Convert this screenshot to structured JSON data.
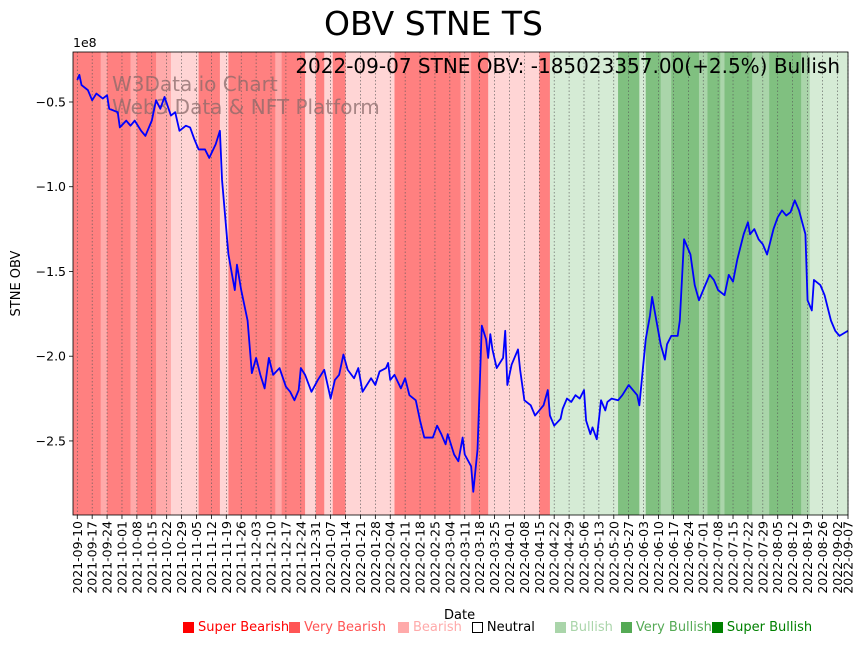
{
  "chart_data": {
    "type": "line",
    "title": "OBV STNE TS",
    "annotation": "2022-09-07 STNE OBV: -185023357.00(+2.5%) Bullish",
    "watermark": [
      "W3Data.io Chart",
      "Web3 Data & NFT Platform"
    ],
    "xlabel": "Date",
    "ylabel": "STNE OBV",
    "y_scale_label": "1e8",
    "x_start_date": "2021-09-10",
    "x_unit": "days since start",
    "xlim": [
      -2,
      362
    ],
    "ylim": [
      -2.937,
      -0.205
    ],
    "y_ticks": [
      -0.5,
      -1.0,
      -1.5,
      -2.0,
      -2.5
    ],
    "y_tick_labels": [
      "−0.5",
      "−1.0",
      "−1.5",
      "−2.0",
      "−2.5"
    ],
    "x_tick_days": [
      0,
      7,
      14,
      21,
      28,
      35,
      42,
      49,
      56,
      63,
      70,
      77,
      84,
      91,
      98,
      105,
      112,
      119,
      126,
      133,
      140,
      147,
      154,
      161,
      168,
      175,
      182,
      189,
      196,
      203,
      210,
      217,
      224,
      231,
      238,
      245,
      252,
      259,
      266,
      273,
      280,
      287,
      294,
      301,
      308,
      315,
      322,
      329,
      336,
      343,
      350,
      357,
      362
    ],
    "x_tick_labels": [
      "2021-09-10",
      "2021-09-17",
      "2021-09-24",
      "2021-10-01",
      "2021-10-08",
      "2021-10-15",
      "2021-10-22",
      "2021-10-29",
      "2021-11-05",
      "2021-11-12",
      "2021-11-19",
      "2021-11-26",
      "2021-12-03",
      "2021-12-10",
      "2021-12-17",
      "2021-12-24",
      "2021-12-31",
      "2022-01-07",
      "2022-01-14",
      "2022-01-21",
      "2022-01-28",
      "2022-02-04",
      "2022-02-11",
      "2022-02-18",
      "2022-02-25",
      "2022-03-04",
      "2022-03-11",
      "2022-03-18",
      "2022-03-25",
      "2022-04-01",
      "2022-04-08",
      "2022-04-15",
      "2022-04-22",
      "2022-04-29",
      "2022-05-06",
      "2022-05-13",
      "2022-05-20",
      "2022-05-27",
      "2022-06-03",
      "2022-06-10",
      "2022-06-17",
      "2022-06-24",
      "2022-07-01",
      "2022-07-08",
      "2022-07-15",
      "2022-07-22",
      "2022-07-29",
      "2022-08-05",
      "2022-08-12",
      "2022-08-19",
      "2022-08-26",
      "2022-09-02",
      "2022-09-07"
    ],
    "series": [
      {
        "name": "OBV",
        "color": "#0000ff",
        "points": [
          [
            0,
            -0.37
          ],
          [
            1,
            -0.34
          ],
          [
            2,
            -0.4
          ],
          [
            5,
            -0.43
          ],
          [
            7,
            -0.49
          ],
          [
            9,
            -0.45
          ],
          [
            12,
            -0.48
          ],
          [
            14,
            -0.46
          ],
          [
            15,
            -0.54
          ],
          [
            19,
            -0.56
          ],
          [
            20,
            -0.65
          ],
          [
            23,
            -0.61
          ],
          [
            25,
            -0.64
          ],
          [
            27,
            -0.61
          ],
          [
            30,
            -0.67
          ],
          [
            32,
            -0.7
          ],
          [
            35,
            -0.61
          ],
          [
            37,
            -0.49
          ],
          [
            39,
            -0.54
          ],
          [
            41,
            -0.47
          ],
          [
            44,
            -0.58
          ],
          [
            46,
            -0.56
          ],
          [
            48,
            -0.67
          ],
          [
            51,
            -0.64
          ],
          [
            53,
            -0.65
          ],
          [
            55,
            -0.72
          ],
          [
            57,
            -0.78
          ],
          [
            60,
            -0.78
          ],
          [
            62,
            -0.83
          ],
          [
            65,
            -0.75
          ],
          [
            67,
            -0.67
          ],
          [
            68,
            -0.96
          ],
          [
            71,
            -1.4
          ],
          [
            74,
            -1.61
          ],
          [
            75,
            -1.46
          ],
          [
            77,
            -1.61
          ],
          [
            80,
            -1.79
          ],
          [
            82,
            -2.1
          ],
          [
            84,
            -2.01
          ],
          [
            86,
            -2.11
          ],
          [
            88,
            -2.19
          ],
          [
            90,
            -2.01
          ],
          [
            92,
            -2.11
          ],
          [
            95,
            -2.07
          ],
          [
            98,
            -2.18
          ],
          [
            100,
            -2.21
          ],
          [
            102,
            -2.26
          ],
          [
            104,
            -2.2
          ],
          [
            105,
            -2.07
          ],
          [
            107,
            -2.11
          ],
          [
            110,
            -2.21
          ],
          [
            113,
            -2.14
          ],
          [
            116,
            -2.08
          ],
          [
            119,
            -2.25
          ],
          [
            121,
            -2.14
          ],
          [
            123,
            -2.11
          ],
          [
            125,
            -1.99
          ],
          [
            127,
            -2.08
          ],
          [
            130,
            -2.13
          ],
          [
            132,
            -2.07
          ],
          [
            134,
            -2.21
          ],
          [
            138,
            -2.13
          ],
          [
            140,
            -2.17
          ],
          [
            142,
            -2.09
          ],
          [
            145,
            -2.07
          ],
          [
            146,
            -2.04
          ],
          [
            147,
            -2.14
          ],
          [
            149,
            -2.11
          ],
          [
            152,
            -2.19
          ],
          [
            154,
            -2.13
          ],
          [
            156,
            -2.23
          ],
          [
            159,
            -2.26
          ],
          [
            161,
            -2.38
          ],
          [
            163,
            -2.48
          ],
          [
            167,
            -2.48
          ],
          [
            169,
            -2.41
          ],
          [
            171,
            -2.46
          ],
          [
            173,
            -2.52
          ],
          [
            174,
            -2.46
          ],
          [
            177,
            -2.58
          ],
          [
            179,
            -2.62
          ],
          [
            181,
            -2.48
          ],
          [
            182,
            -2.58
          ],
          [
            185,
            -2.65
          ],
          [
            186,
            -2.8
          ],
          [
            188,
            -2.55
          ],
          [
            190,
            -1.82
          ],
          [
            192,
            -1.9
          ],
          [
            193,
            -2.01
          ],
          [
            194,
            -1.87
          ],
          [
            195,
            -1.96
          ],
          [
            197,
            -2.07
          ],
          [
            200,
            -2.01
          ],
          [
            201,
            -1.85
          ],
          [
            202,
            -2.17
          ],
          [
            204,
            -2.05
          ],
          [
            207,
            -1.96
          ],
          [
            208,
            -2.08
          ],
          [
            210,
            -2.26
          ],
          [
            213,
            -2.29
          ],
          [
            215,
            -2.35
          ],
          [
            217,
            -2.32
          ],
          [
            219,
            -2.29
          ],
          [
            221,
            -2.2
          ],
          [
            222,
            -2.35
          ],
          [
            224,
            -2.41
          ],
          [
            227,
            -2.37
          ],
          [
            228,
            -2.31
          ],
          [
            230,
            -2.25
          ],
          [
            232,
            -2.27
          ],
          [
            234,
            -2.23
          ],
          [
            236,
            -2.25
          ],
          [
            238,
            -2.2
          ],
          [
            239,
            -2.38
          ],
          [
            241,
            -2.46
          ],
          [
            242,
            -2.42
          ],
          [
            244,
            -2.49
          ],
          [
            246,
            -2.26
          ],
          [
            248,
            -2.32
          ],
          [
            249,
            -2.27
          ],
          [
            251,
            -2.25
          ],
          [
            254,
            -2.26
          ],
          [
            256,
            -2.23
          ],
          [
            259,
            -2.17
          ],
          [
            261,
            -2.2
          ],
          [
            263,
            -2.23
          ],
          [
            264,
            -2.29
          ],
          [
            267,
            -1.9
          ],
          [
            269,
            -1.76
          ],
          [
            270,
            -1.65
          ],
          [
            272,
            -1.79
          ],
          [
            274,
            -1.93
          ],
          [
            276,
            -2.02
          ],
          [
            277,
            -1.93
          ],
          [
            279,
            -1.88
          ],
          [
            282,
            -1.88
          ],
          [
            283,
            -1.79
          ],
          [
            285,
            -1.31
          ],
          [
            288,
            -1.4
          ],
          [
            290,
            -1.58
          ],
          [
            292,
            -1.67
          ],
          [
            295,
            -1.58
          ],
          [
            297,
            -1.52
          ],
          [
            299,
            -1.55
          ],
          [
            301,
            -1.61
          ],
          [
            304,
            -1.64
          ],
          [
            306,
            -1.52
          ],
          [
            308,
            -1.56
          ],
          [
            310,
            -1.43
          ],
          [
            313,
            -1.28
          ],
          [
            315,
            -1.21
          ],
          [
            316,
            -1.28
          ],
          [
            318,
            -1.25
          ],
          [
            320,
            -1.31
          ],
          [
            322,
            -1.34
          ],
          [
            324,
            -1.4
          ],
          [
            327,
            -1.25
          ],
          [
            329,
            -1.18
          ],
          [
            331,
            -1.14
          ],
          [
            333,
            -1.17
          ],
          [
            335,
            -1.15
          ],
          [
            337,
            -1.08
          ],
          [
            339,
            -1.14
          ],
          [
            342,
            -1.28
          ],
          [
            343,
            -1.67
          ],
          [
            345,
            -1.73
          ],
          [
            346,
            -1.55
          ],
          [
            349,
            -1.58
          ],
          [
            351,
            -1.64
          ],
          [
            354,
            -1.79
          ],
          [
            356,
            -1.85
          ],
          [
            358,
            -1.88
          ],
          [
            362,
            -1.85
          ]
        ]
      }
    ],
    "sentiment_bands": [
      [
        -2,
        11,
        -3
      ],
      [
        11,
        14,
        -2
      ],
      [
        14,
        25,
        -3
      ],
      [
        25,
        28,
        -2
      ],
      [
        28,
        37,
        -3
      ],
      [
        37,
        44,
        -2
      ],
      [
        44,
        57,
        -1
      ],
      [
        57,
        67,
        -3
      ],
      [
        67,
        71,
        -1
      ],
      [
        71,
        93,
        -3
      ],
      [
        93,
        96,
        -2
      ],
      [
        96,
        107,
        -3
      ],
      [
        107,
        112,
        -1
      ],
      [
        112,
        116,
        -3
      ],
      [
        116,
        120,
        -1
      ],
      [
        120,
        126,
        -3
      ],
      [
        126,
        149,
        -1
      ],
      [
        149,
        180,
        -3
      ],
      [
        180,
        185,
        -2
      ],
      [
        185,
        193,
        -3
      ],
      [
        193,
        217,
        -1
      ],
      [
        217,
        222,
        -3
      ],
      [
        222,
        254,
        1
      ],
      [
        254,
        264,
        3
      ],
      [
        264,
        267,
        1
      ],
      [
        267,
        274,
        3
      ],
      [
        274,
        279,
        2
      ],
      [
        279,
        292,
        3
      ],
      [
        292,
        296,
        2
      ],
      [
        296,
        302,
        3
      ],
      [
        302,
        304,
        2
      ],
      [
        304,
        317,
        3
      ],
      [
        317,
        325,
        2
      ],
      [
        325,
        340,
        3
      ],
      [
        340,
        344,
        2
      ],
      [
        344,
        362,
        1
      ]
    ],
    "band_colors": {
      "-3": "#ff8080",
      "-2": "#ffaaaa",
      "-1": "#ffd5d5",
      "1": "#d5ebd5",
      "2": "#aad5aa",
      "3": "#80c080"
    },
    "legend": [
      {
        "label": "Super Bearish",
        "color": "#ff0000"
      },
      {
        "label": "Very Bearish",
        "color": "#ff5555"
      },
      {
        "label": "Bearish",
        "color": "#ffaaaa"
      },
      {
        "label": "Neutral",
        "color": "#ffffff"
      },
      {
        "label": "Bullish",
        "color": "#aad5aa"
      },
      {
        "label": "Very Bullish",
        "color": "#55aa55"
      },
      {
        "label": "Super Bullish",
        "color": "#008000"
      }
    ],
    "legend_placement": "bottom"
  }
}
